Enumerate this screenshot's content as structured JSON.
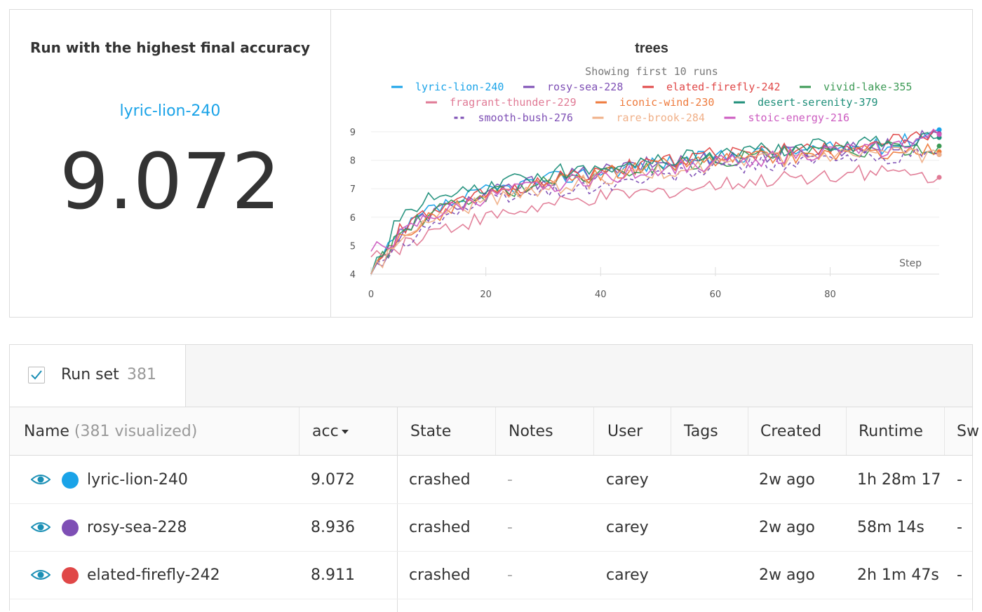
{
  "scalar_panel": {
    "title": "Run with the highest final accuracy",
    "run_name": "lyric-lion-240",
    "value": "9.072",
    "accent": "#1aa3e8"
  },
  "chart_panel": {
    "title": "trees",
    "subtitle": "Showing first 10 runs",
    "x_axis_label": "Step",
    "legend": [
      {
        "name": "lyric-lion-240",
        "color": "#1aa3e8",
        "dash": false
      },
      {
        "name": "rosy-sea-228",
        "color": "#7e4fb5",
        "dash": false
      },
      {
        "name": "elated-firefly-242",
        "color": "#e04848",
        "dash": false
      },
      {
        "name": "vivid-lake-355",
        "color": "#3c9a55",
        "dash": false
      },
      {
        "name": "fragrant-thunder-229",
        "color": "#e07a95",
        "dash": false
      },
      {
        "name": "iconic-wind-230",
        "color": "#ee7a3c",
        "dash": false
      },
      {
        "name": "desert-serenity-379",
        "color": "#1f8f7a",
        "dash": false
      },
      {
        "name": "smooth-bush-276",
        "color": "#7e4fb5",
        "dash": true
      },
      {
        "name": "rare-brook-284",
        "color": "#f0b088",
        "dash": false
      },
      {
        "name": "stoic-energy-216",
        "color": "#cc5bc0",
        "dash": false
      }
    ]
  },
  "chart_data": {
    "type": "line",
    "title": "trees",
    "xlabel": "Step",
    "ylabel": "",
    "xlim": [
      0,
      99
    ],
    "ylim": [
      4,
      9
    ],
    "x_ticks": [
      0,
      20,
      40,
      60,
      80
    ],
    "y_ticks": [
      4,
      5,
      6,
      7,
      8,
      9
    ],
    "grid": true,
    "legend_position": "top-center",
    "series": [
      {
        "name": "lyric-lion-240",
        "final": 9.07,
        "y_at_steps": {
          "0": 4.0,
          "5": 5.4,
          "10": 6.2,
          "20": 6.9,
          "30": 7.3,
          "40": 7.6,
          "50": 7.9,
          "60": 8.1,
          "70": 8.3,
          "80": 8.4,
          "90": 8.5,
          "99": 9.07
        }
      },
      {
        "name": "rosy-sea-228",
        "final": 8.94,
        "y_at_steps": {
          "0": 4.0,
          "5": 5.3,
          "10": 6.1,
          "20": 6.8,
          "30": 7.3,
          "40": 7.6,
          "50": 7.9,
          "60": 8.1,
          "70": 8.2,
          "80": 8.4,
          "90": 8.5,
          "99": 8.94
        }
      },
      {
        "name": "elated-firefly-242",
        "final": 8.91,
        "y_at_steps": {
          "0": 4.0,
          "5": 5.5,
          "10": 6.1,
          "20": 6.8,
          "30": 7.3,
          "40": 7.6,
          "50": 7.9,
          "60": 8.2,
          "70": 8.3,
          "80": 8.5,
          "90": 8.6,
          "99": 8.91
        }
      },
      {
        "name": "vivid-lake-355",
        "final": 8.5,
        "y_at_steps": {
          "0": 4.0,
          "5": 5.4,
          "10": 6.1,
          "20": 6.8,
          "30": 7.2,
          "40": 7.5,
          "50": 7.8,
          "60": 8.0,
          "70": 8.2,
          "80": 8.3,
          "90": 8.4,
          "99": 8.5
        }
      },
      {
        "name": "fragrant-thunder-229",
        "final": 7.4,
        "y_at_steps": {
          "0": 4.6,
          "5": 4.9,
          "10": 5.5,
          "20": 6.0,
          "30": 6.4,
          "40": 6.7,
          "50": 6.9,
          "60": 7.1,
          "70": 7.3,
          "80": 7.5,
          "90": 7.6,
          "99": 7.4
        }
      },
      {
        "name": "iconic-wind-230",
        "final": 8.3,
        "y_at_steps": {
          "0": 4.0,
          "5": 5.3,
          "10": 6.0,
          "20": 6.7,
          "30": 7.1,
          "40": 7.5,
          "50": 7.8,
          "60": 8.0,
          "70": 8.1,
          "80": 8.2,
          "90": 8.3,
          "99": 8.3
        }
      },
      {
        "name": "desert-serenity-379",
        "final": 8.8,
        "y_at_steps": {
          "0": 4.0,
          "5": 6.0,
          "10": 6.6,
          "20": 7.0,
          "30": 7.5,
          "40": 7.8,
          "50": 8.0,
          "60": 8.2,
          "70": 8.4,
          "80": 8.5,
          "90": 8.6,
          "99": 8.8
        }
      },
      {
        "name": "smooth-bush-276",
        "final": 8.2,
        "y_at_steps": {
          "0": 4.0,
          "5": 5.0,
          "10": 5.8,
          "20": 6.6,
          "30": 6.9,
          "40": 7.1,
          "50": 7.4,
          "60": 7.7,
          "70": 7.9,
          "80": 8.0,
          "90": 8.1,
          "99": 8.2
        }
      },
      {
        "name": "rare-brook-284",
        "final": 8.2,
        "y_at_steps": {
          "0": 4.0,
          "5": 5.2,
          "10": 5.9,
          "20": 6.6,
          "30": 7.0,
          "40": 7.3,
          "50": 7.6,
          "60": 7.8,
          "70": 8.0,
          "80": 8.1,
          "90": 8.2,
          "99": 8.2
        }
      },
      {
        "name": "stoic-energy-216",
        "final": 8.9,
        "y_at_steps": {
          "0": 4.8,
          "5": 5.3,
          "10": 6.0,
          "20": 6.7,
          "30": 7.1,
          "40": 7.4,
          "50": 7.7,
          "60": 7.9,
          "70": 8.1,
          "80": 8.3,
          "90": 8.4,
          "99": 8.9
        }
      }
    ]
  },
  "runset": {
    "label": "Run set",
    "count": "381",
    "checked": true
  },
  "table": {
    "columns": {
      "name": "Name",
      "name_suffix": "(381 visualized)",
      "acc": "acc",
      "state": "State",
      "notes": "Notes",
      "user": "User",
      "tags": "Tags",
      "created": "Created",
      "runtime": "Runtime",
      "sweep": "Sw"
    },
    "rows": [
      {
        "name": "lyric-lion-240",
        "color": "#1aa3e8",
        "acc": "9.072",
        "state": "crashed",
        "notes": "-",
        "user": "carey",
        "tags": "",
        "created": "2w ago",
        "runtime": "1h 28m 17",
        "sweep": "-"
      },
      {
        "name": "rosy-sea-228",
        "color": "#7e4fb5",
        "acc": "8.936",
        "state": "crashed",
        "notes": "-",
        "user": "carey",
        "tags": "",
        "created": "2w ago",
        "runtime": "58m 14s",
        "sweep": "-"
      },
      {
        "name": "elated-firefly-242",
        "color": "#e04848",
        "acc": "8.911",
        "state": "crashed",
        "notes": "-",
        "user": "carey",
        "tags": "",
        "created": "2w ago",
        "runtime": "2h 1m 47s",
        "sweep": "-"
      }
    ]
  }
}
